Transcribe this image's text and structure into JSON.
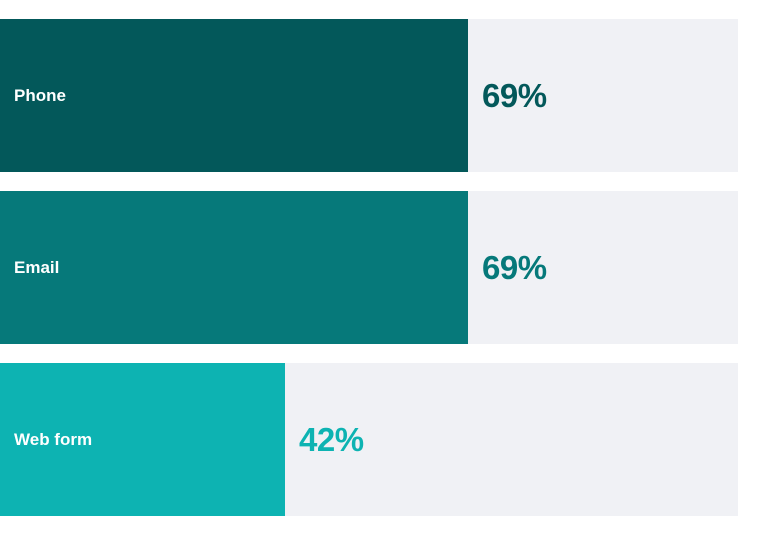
{
  "chart_data": {
    "type": "bar",
    "orientation": "horizontal",
    "categories": [
      "Phone",
      "Email",
      "Web form"
    ],
    "values": [
      69,
      69,
      42
    ],
    "value_labels": [
      "69%",
      "69%",
      "42%"
    ],
    "xlim": [
      0,
      100
    ],
    "colors": [
      "#03585a",
      "#06797a",
      "#0db3b2"
    ],
    "track_color": "#f0f1f5",
    "grid": false,
    "legend": "none"
  }
}
